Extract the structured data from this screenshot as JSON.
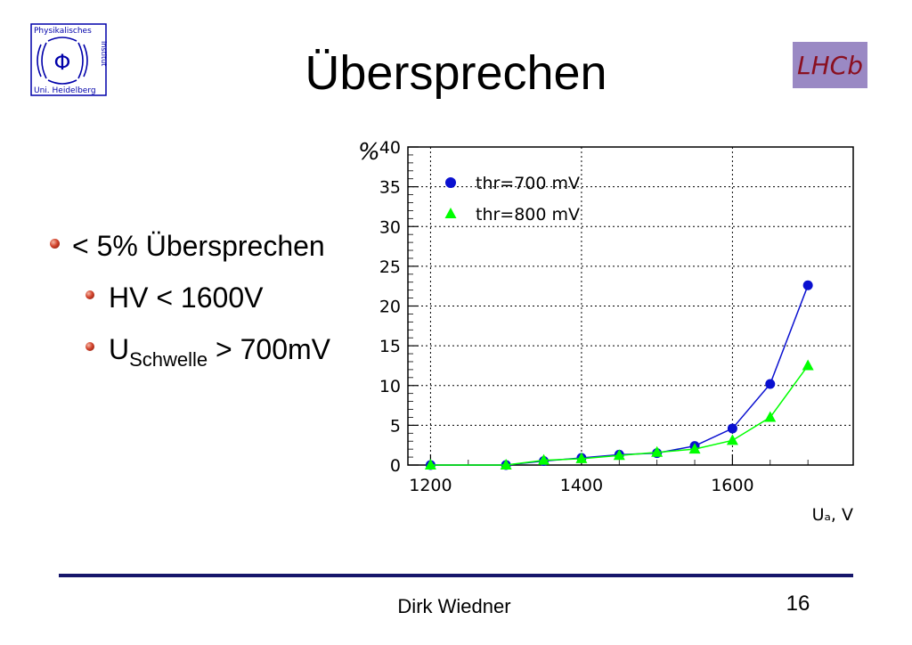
{
  "slide": {
    "title": "Übersprechen",
    "bullets": [
      {
        "text": "< 5% Übersprechen"
      },
      {
        "text": "HV  < 1600V"
      },
      {
        "main": "U",
        "sub": "Schwelle",
        "rest": " > 700mV"
      }
    ],
    "author": "Dirk Wiedner",
    "page_number": "16"
  },
  "logos": {
    "institute": {
      "lines": [
        "Physikalisches",
        "Institut",
        "Uni. Heidelberg"
      ],
      "symbol": "Φ"
    },
    "experiment": {
      "text": "LHCb"
    }
  },
  "colors": {
    "series_700": "#0a10d0",
    "series_800": "#00ff00",
    "footer_line": "#16166b",
    "bullet": "#d2432c"
  },
  "chart_data": {
    "type": "line",
    "ylabel": "%",
    "xlabel": "Uₐ, V",
    "xlim": [
      1170,
      1760
    ],
    "ylim": [
      0,
      40
    ],
    "x_ticks": [
      1200,
      1400,
      1600
    ],
    "y_ticks": [
      0,
      5,
      10,
      15,
      20,
      25,
      30,
      35,
      40
    ],
    "grid": true,
    "legend_position": "top-left",
    "series": [
      {
        "name": "thr=700 mV",
        "marker": "circle",
        "x": [
          1200,
          1300,
          1350,
          1400,
          1450,
          1500,
          1550,
          1600,
          1650,
          1700
        ],
        "y": [
          0.0,
          0.0,
          0.5,
          0.9,
          1.3,
          1.5,
          2.4,
          4.6,
          10.2,
          22.6
        ]
      },
      {
        "name": "thr=800 mV",
        "marker": "triangle",
        "x": [
          1200,
          1300,
          1350,
          1400,
          1450,
          1500,
          1550,
          1600,
          1650,
          1700
        ],
        "y": [
          0.0,
          0.0,
          0.6,
          0.8,
          1.2,
          1.6,
          2.0,
          3.1,
          6.0,
          12.5
        ]
      }
    ]
  }
}
